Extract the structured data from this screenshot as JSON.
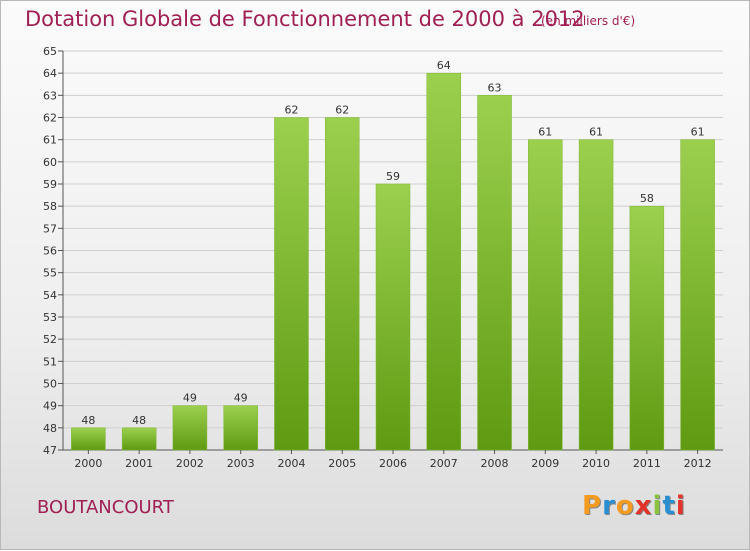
{
  "header": {
    "title": "Dotation Globale de Fonctionnement de 2000 à 2012",
    "unit": "(en milliers d'€)"
  },
  "footer": {
    "commune": "BOUTANCOURT",
    "logo": "Proxiti"
  },
  "colors": {
    "title": "#a02055",
    "bar_light": "#9bd04e",
    "bar_dark": "#5f9a12",
    "grid": "#cfcfcf",
    "axis_text": "#333333",
    "logo_letters": [
      "#f39a1f",
      "#2a8fd1",
      "#f39a1f",
      "#e2332b",
      "#8cc43f",
      "#2a8fd1",
      "#e2332b"
    ]
  },
  "chart_data": {
    "type": "bar",
    "title": "Dotation Globale de Fonctionnement de 2000 à 2012",
    "subtitle": "(en milliers d'€)",
    "categories": [
      "2000",
      "2001",
      "2002",
      "2003",
      "2004",
      "2005",
      "2006",
      "2007",
      "2008",
      "2009",
      "2010",
      "2011",
      "2012"
    ],
    "values": [
      48,
      48,
      49,
      49,
      62,
      62,
      59,
      64,
      63,
      61,
      61,
      58,
      61
    ],
    "ylim": [
      47,
      65
    ],
    "yticks": [
      47,
      48,
      49,
      50,
      51,
      52,
      53,
      54,
      55,
      56,
      57,
      58,
      59,
      60,
      61,
      62,
      63,
      64,
      65
    ],
    "grid": true,
    "data_labels": true
  }
}
